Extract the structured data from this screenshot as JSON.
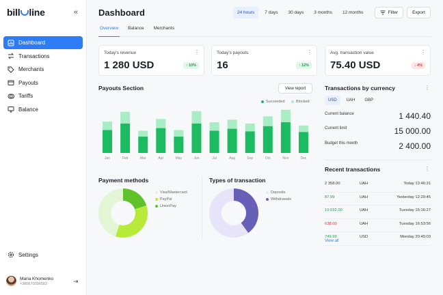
{
  "brand": {
    "logo_left": "bill",
    "logo_right": "line"
  },
  "sidebar": {
    "items": [
      {
        "label": "Dashboard",
        "icon": "dashboard-icon",
        "active": true
      },
      {
        "label": "Transactions",
        "icon": "arrows-icon"
      },
      {
        "label": "Merchants",
        "icon": "tag-icon"
      },
      {
        "label": "Payouts",
        "icon": "wallet-icon"
      },
      {
        "label": "Tariffs",
        "icon": "coins-icon"
      },
      {
        "label": "Balance",
        "icon": "monitor-icon"
      }
    ],
    "settings_label": "Settings",
    "user": {
      "name": "Maria Khomenko",
      "phone": "+380670096582"
    }
  },
  "header": {
    "title": "Dashboard",
    "ranges": [
      "24 hours",
      "7 days",
      "30 days",
      "3 months",
      "12 months"
    ],
    "selected_range": 0,
    "filter_label": "Filter",
    "export_label": "Export",
    "tabs": [
      "Overview",
      "Balance",
      "Merchants"
    ],
    "active_tab": 0
  },
  "kpis": [
    {
      "label": "Today's revenue",
      "value": "1 280 USD",
      "change": "↑ 10%",
      "trend": "up"
    },
    {
      "label": "Today's payouts",
      "value": "16",
      "change": "↑ 12%",
      "trend": "up"
    },
    {
      "label": "Avg. transaction value",
      "value": "75.40 USD",
      "change": "↓ 4%",
      "trend": "down"
    }
  ],
  "payouts": {
    "title": "Payouts Section",
    "report_label": "View report",
    "legend": [
      {
        "name": "Succeeded",
        "color": "#1dbb61"
      },
      {
        "name": "Blocked",
        "color": "#a8edc3"
      }
    ]
  },
  "chart_data": [
    {
      "type": "bar",
      "stacked": true,
      "categories": [
        "Jan",
        "Feb",
        "Mar",
        "Apr",
        "May",
        "Jun",
        "Jul",
        "Aug",
        "Sep",
        "Oct",
        "Nov",
        "Dec"
      ],
      "series": [
        {
          "name": "Succeeded",
          "values": [
            35,
            45,
            25,
            38,
            25,
            45,
            34,
            37,
            33,
            41,
            47,
            32
          ]
        },
        {
          "name": "Blocked",
          "values": [
            13,
            18,
            9,
            14,
            10,
            19,
            13,
            14,
            12,
            15,
            19,
            10
          ]
        }
      ],
      "ylim": [
        0,
        70
      ],
      "grid": false
    },
    {
      "type": "pie",
      "title": "Payment methods",
      "donut": true,
      "labels": [
        "Visa/Mastercard",
        "PayPal",
        "UnionPay"
      ],
      "values": [
        45,
        35,
        20
      ],
      "colors": [
        "#e2f6d6",
        "#b8ea3a",
        "#5fc22c"
      ]
    },
    {
      "type": "pie",
      "title": "Types of transaction",
      "donut": true,
      "labels": [
        "Deposits",
        "Withdrawals"
      ],
      "values": [
        60,
        40
      ],
      "colors": [
        "#e7e4fa",
        "#6a5fb8"
      ]
    }
  ],
  "currency": {
    "title": "Transactions by currency",
    "tabs": [
      "USD",
      "UAH",
      "GBP"
    ],
    "selected": 0,
    "rows": [
      {
        "label": "Current balance",
        "value": "1 440.40"
      },
      {
        "label": "Current limit",
        "value": "15 000.00"
      },
      {
        "label": "Budget this month",
        "value": "2 400.00"
      }
    ]
  },
  "recent": {
    "title": "Recent transactions",
    "view_all": "View all",
    "rows": [
      {
        "amount": "2 358.00",
        "currency": "UAH",
        "date": "Today 13:46:31",
        "color": "#333333"
      },
      {
        "amount": "87.99",
        "currency": "UAH",
        "date": "Yesterday 12:20:45",
        "color": "#1c9a49"
      },
      {
        "amount": "10 032.00",
        "currency": "UAH",
        "date": "Tuesday 15:16:27",
        "color": "#1c9a49"
      },
      {
        "amount": "638.00",
        "currency": "UAH",
        "date": "Tuesday 16:53:56",
        "color": "#c8383b"
      },
      {
        "amount": "749.99",
        "currency": "USD",
        "date": "Monday 20:45:03",
        "color": "#1c9a49"
      }
    ]
  }
}
